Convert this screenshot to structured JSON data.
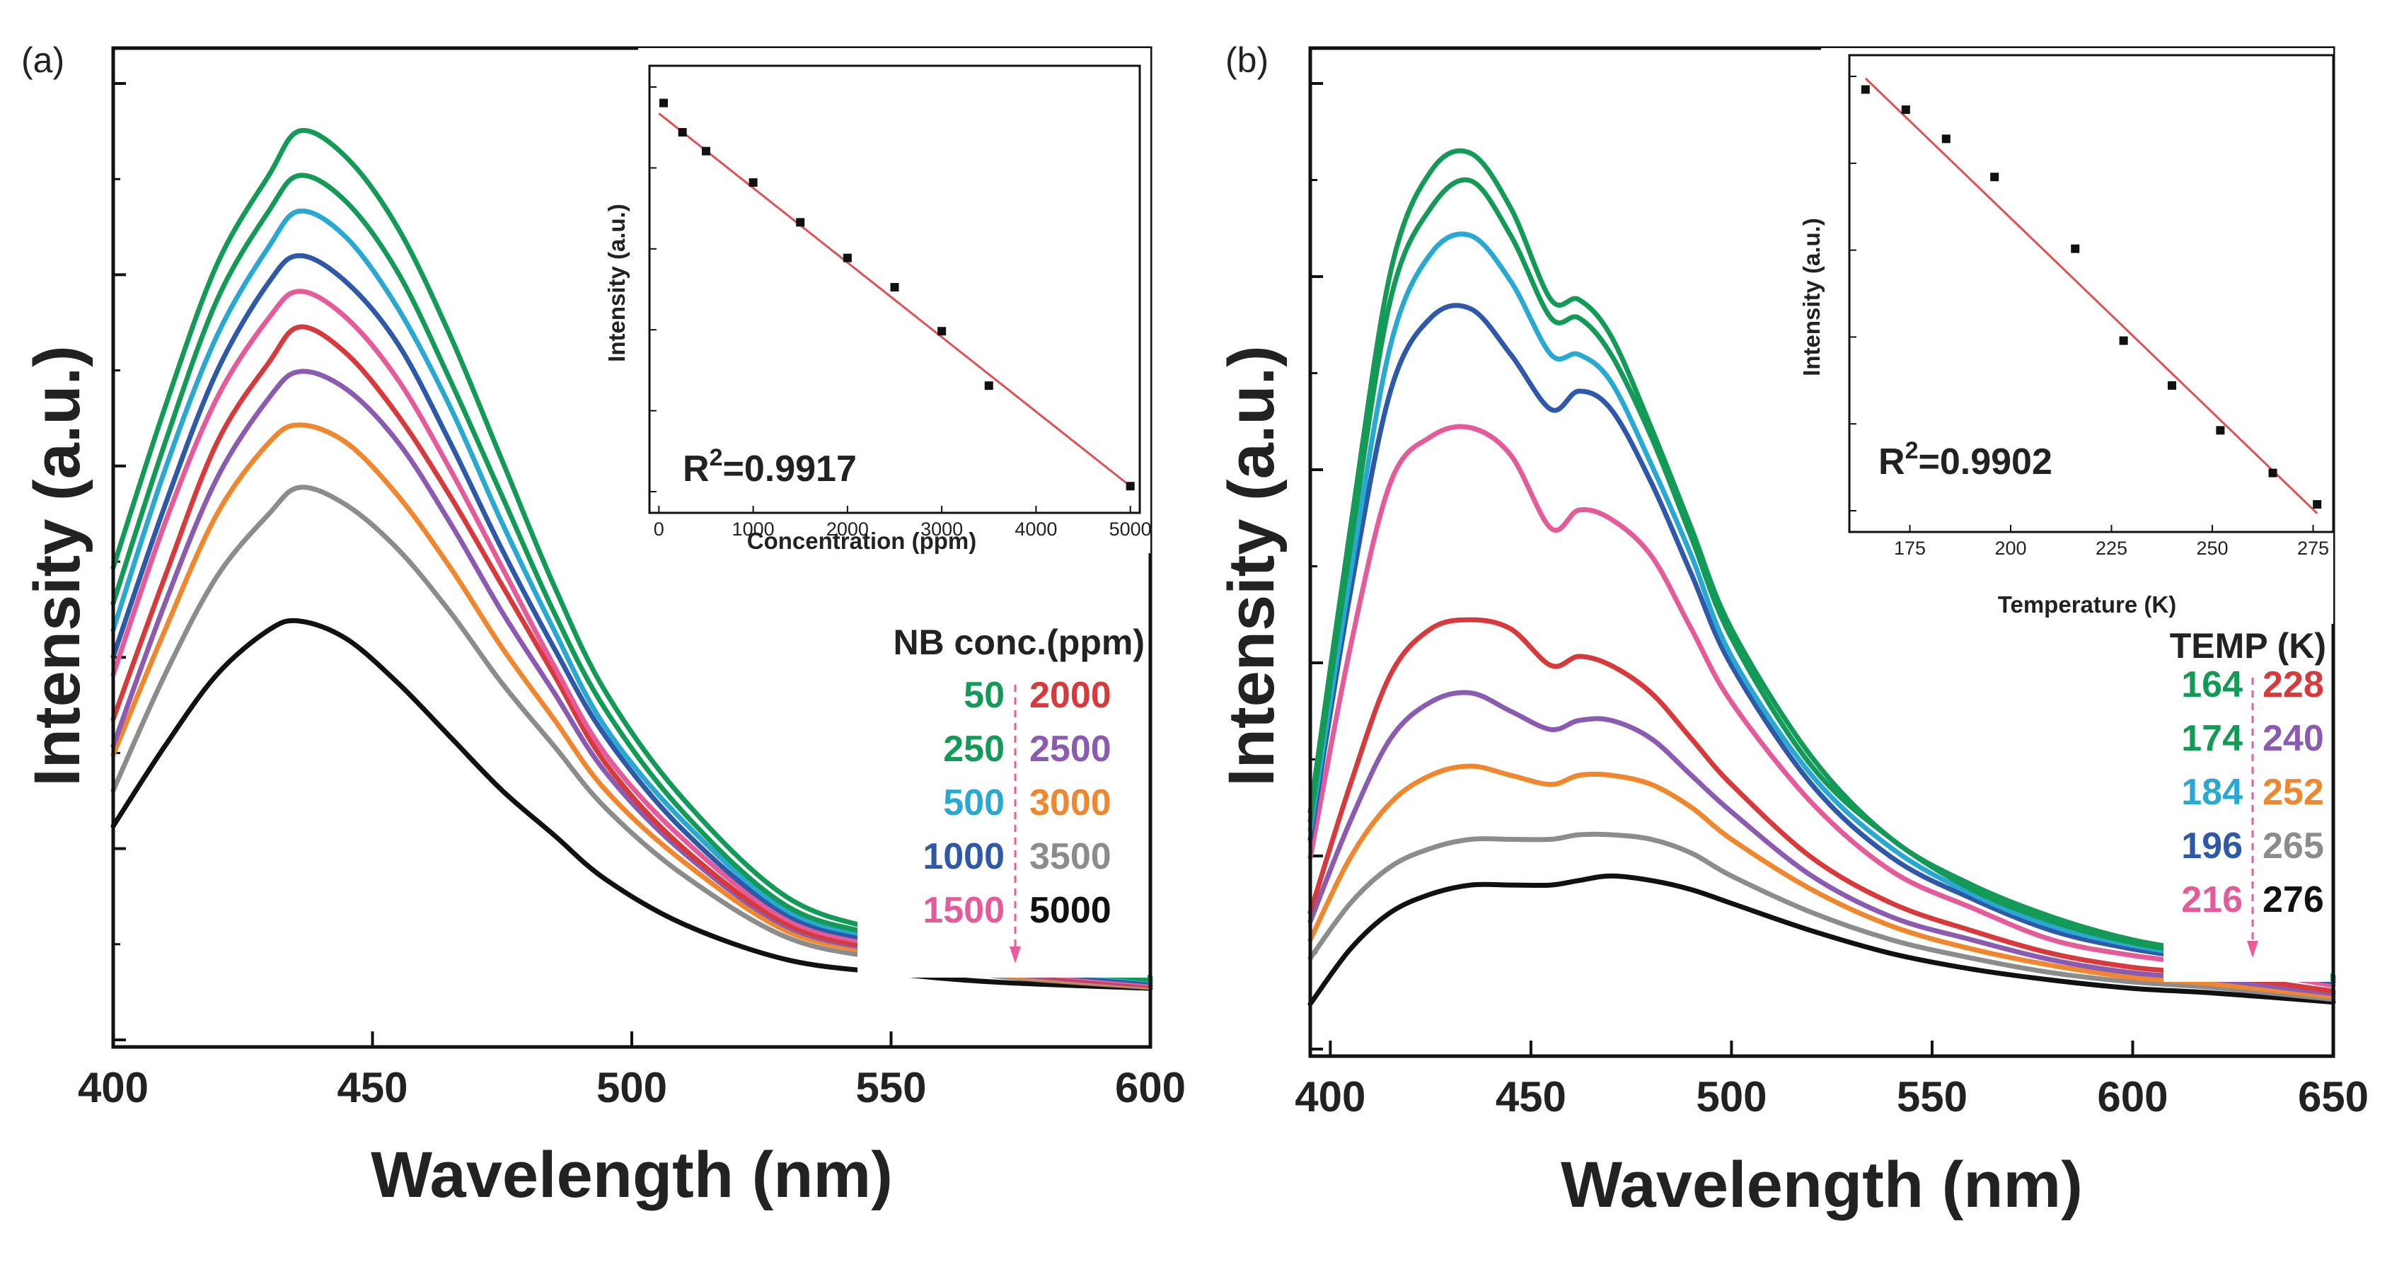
{
  "chart_data": [
    {
      "id": "a",
      "panel_label": "(a)",
      "type": "line",
      "xlabel": "Wavelength (nm)",
      "ylabel": "Intensity (a.u.)",
      "xlim": [
        400,
        600
      ],
      "ylim": [
        0,
        1
      ],
      "xticks": [
        400,
        450,
        500,
        550,
        600
      ],
      "x": [
        400,
        410,
        420,
        430,
        436,
        445,
        455,
        465,
        475,
        485,
        495,
        510,
        530,
        550,
        570,
        600
      ],
      "series": [
        {
          "name": "50",
          "color": "#139a56",
          "values": [
            0.51,
            0.69,
            0.85,
            0.95,
            1.0,
            0.97,
            0.89,
            0.77,
            0.63,
            0.49,
            0.37,
            0.25,
            0.14,
            0.1,
            0.07,
            0.05
          ]
        },
        {
          "name": "250",
          "color": "#139a56",
          "values": [
            0.47,
            0.65,
            0.81,
            0.91,
            0.95,
            0.92,
            0.84,
            0.72,
            0.59,
            0.46,
            0.35,
            0.235,
            0.13,
            0.095,
            0.067,
            0.048
          ]
        },
        {
          "name": "500",
          "color": "#29a9d2",
          "values": [
            0.44,
            0.62,
            0.77,
            0.87,
            0.91,
            0.88,
            0.8,
            0.69,
            0.56,
            0.44,
            0.33,
            0.225,
            0.125,
            0.092,
            0.065,
            0.047
          ]
        },
        {
          "name": "1000",
          "color": "#2e58a8",
          "values": [
            0.41,
            0.58,
            0.73,
            0.83,
            0.86,
            0.83,
            0.76,
            0.65,
            0.53,
            0.42,
            0.32,
            0.215,
            0.12,
            0.088,
            0.062,
            0.045
          ]
        },
        {
          "name": "1500",
          "color": "#e55b9a",
          "values": [
            0.39,
            0.56,
            0.7,
            0.79,
            0.82,
            0.79,
            0.72,
            0.62,
            0.51,
            0.4,
            0.3,
            0.205,
            0.115,
            0.084,
            0.06,
            0.043
          ]
        },
        {
          "name": "2000",
          "color": "#d8393b",
          "values": [
            0.34,
            0.5,
            0.65,
            0.74,
            0.78,
            0.75,
            0.68,
            0.59,
            0.49,
            0.39,
            0.29,
            0.195,
            0.11,
            0.08,
            0.058,
            0.042
          ]
        },
        {
          "name": "2500",
          "color": "#8a5bb0",
          "values": [
            0.31,
            0.47,
            0.61,
            0.7,
            0.73,
            0.71,
            0.65,
            0.56,
            0.46,
            0.37,
            0.28,
            0.19,
            0.107,
            0.078,
            0.056,
            0.041
          ]
        },
        {
          "name": "3000",
          "color": "#f0862e",
          "values": [
            0.3,
            0.44,
            0.57,
            0.65,
            0.67,
            0.65,
            0.59,
            0.51,
            0.42,
            0.34,
            0.26,
            0.18,
            0.102,
            0.075,
            0.054,
            0.04
          ]
        },
        {
          "name": "3500",
          "color": "#8c8c8c",
          "values": [
            0.26,
            0.39,
            0.5,
            0.57,
            0.6,
            0.58,
            0.53,
            0.46,
            0.38,
            0.31,
            0.24,
            0.165,
            0.095,
            0.07,
            0.052,
            0.039
          ]
        },
        {
          "name": "5000",
          "color": "#111111",
          "values": [
            0.22,
            0.31,
            0.39,
            0.44,
            0.45,
            0.43,
            0.38,
            0.32,
            0.26,
            0.21,
            0.16,
            0.11,
            0.07,
            0.055,
            0.045,
            0.038
          ]
        }
      ],
      "legend": {
        "title": "NB conc.(ppm)",
        "left": [
          {
            "label": "50",
            "color": "#139a56"
          },
          {
            "label": "250",
            "color": "#139a56"
          },
          {
            "label": "500",
            "color": "#29a9d2"
          },
          {
            "label": "1000",
            "color": "#2e58a8"
          },
          {
            "label": "1500",
            "color": "#e55b9a"
          }
        ],
        "right": [
          {
            "label": "2000",
            "color": "#d8393b"
          },
          {
            "label": "2500",
            "color": "#8a5bb0"
          },
          {
            "label": "3000",
            "color": "#f0862e"
          },
          {
            "label": "3500",
            "color": "#8c8c8c"
          },
          {
            "label": "5000",
            "color": "#111111"
          }
        ]
      },
      "inset": {
        "type": "scatter",
        "xlabel": "Concentration (ppm)",
        "ylabel": "Intensity (a.u.)",
        "annotation": {
          "text": "R",
          "sup": "2",
          "rest": "=0.9917"
        },
        "xlim": [
          -100,
          5100
        ],
        "ylim": [
          0,
          1
        ],
        "xticks": [
          0,
          1000,
          2000,
          3000,
          4000,
          5000
        ],
        "x": [
          50,
          250,
          500,
          1000,
          1500,
          2000,
          2500,
          3000,
          3500,
          5000
        ],
        "y": [
          0.945,
          0.875,
          0.83,
          0.755,
          0.66,
          0.575,
          0.505,
          0.4,
          0.27,
          0.03
        ],
        "fit": {
          "x0": 0,
          "y0": 0.92,
          "x1": 5000,
          "y1": 0.03,
          "color": "#e05050"
        }
      }
    },
    {
      "id": "b",
      "panel_label": "(b)",
      "type": "line",
      "xlabel": "Wavelength (nm)",
      "ylabel": "Intensity (a.u.)",
      "xlim": [
        395,
        650
      ],
      "ylim": [
        0,
        1
      ],
      "xticks": [
        400,
        450,
        500,
        550,
        600,
        650
      ],
      "x": [
        395,
        405,
        415,
        425,
        435,
        445,
        455,
        462,
        470,
        480,
        490,
        500,
        520,
        540,
        560,
        580,
        600,
        620,
        650
      ],
      "series": [
        {
          "name": "164",
          "color": "#139a56",
          "values": [
            0.24,
            0.55,
            0.83,
            0.94,
            0.96,
            0.9,
            0.8,
            0.8,
            0.76,
            0.66,
            0.55,
            0.44,
            0.3,
            0.21,
            0.16,
            0.125,
            0.1,
            0.085,
            0.06
          ]
        },
        {
          "name": "174",
          "color": "#139a56",
          "values": [
            0.23,
            0.53,
            0.8,
            0.9,
            0.93,
            0.87,
            0.78,
            0.78,
            0.74,
            0.65,
            0.54,
            0.43,
            0.29,
            0.21,
            0.155,
            0.12,
            0.097,
            0.082,
            0.058
          ]
        },
        {
          "name": "184",
          "color": "#29a9d2",
          "values": [
            0.22,
            0.5,
            0.75,
            0.85,
            0.87,
            0.82,
            0.74,
            0.74,
            0.71,
            0.62,
            0.52,
            0.41,
            0.28,
            0.2,
            0.15,
            0.115,
            0.094,
            0.08,
            0.056
          ]
        },
        {
          "name": "196",
          "color": "#2e58a8",
          "values": [
            0.21,
            0.48,
            0.7,
            0.78,
            0.79,
            0.74,
            0.68,
            0.7,
            0.68,
            0.6,
            0.5,
            0.4,
            0.27,
            0.19,
            0.145,
            0.11,
            0.09,
            0.077,
            0.054
          ]
        },
        {
          "name": "216",
          "color": "#e55b9a",
          "values": [
            0.19,
            0.42,
            0.6,
            0.65,
            0.66,
            0.63,
            0.55,
            0.57,
            0.56,
            0.52,
            0.44,
            0.36,
            0.25,
            0.175,
            0.135,
            0.1,
            0.083,
            0.072,
            0.05
          ]
        },
        {
          "name": "228",
          "color": "#d8393b",
          "values": [
            0.13,
            0.27,
            0.39,
            0.44,
            0.45,
            0.44,
            0.4,
            0.41,
            0.4,
            0.37,
            0.32,
            0.27,
            0.19,
            0.14,
            0.11,
            0.085,
            0.07,
            0.062,
            0.044
          ]
        },
        {
          "name": "240",
          "color": "#8a5bb0",
          "values": [
            0.12,
            0.23,
            0.32,
            0.36,
            0.37,
            0.35,
            0.33,
            0.34,
            0.34,
            0.32,
            0.28,
            0.24,
            0.17,
            0.125,
            0.1,
            0.078,
            0.064,
            0.057,
            0.041
          ]
        },
        {
          "name": "252",
          "color": "#f0862e",
          "values": [
            0.1,
            0.19,
            0.25,
            0.28,
            0.29,
            0.28,
            0.27,
            0.28,
            0.28,
            0.27,
            0.245,
            0.21,
            0.155,
            0.115,
            0.09,
            0.072,
            0.059,
            0.052,
            0.038
          ]
        },
        {
          "name": "265",
          "color": "#8c8c8c",
          "values": [
            0.08,
            0.14,
            0.18,
            0.2,
            0.21,
            0.21,
            0.21,
            0.215,
            0.215,
            0.21,
            0.195,
            0.17,
            0.13,
            0.1,
            0.08,
            0.064,
            0.054,
            0.048,
            0.035
          ]
        },
        {
          "name": "276",
          "color": "#111111",
          "values": [
            0.03,
            0.09,
            0.13,
            0.15,
            0.16,
            0.16,
            0.16,
            0.165,
            0.17,
            0.165,
            0.155,
            0.14,
            0.11,
            0.085,
            0.068,
            0.056,
            0.047,
            0.042,
            0.032
          ]
        }
      ],
      "legend": {
        "title": "TEMP (K)",
        "left": [
          {
            "label": "164",
            "color": "#139a56"
          },
          {
            "label": "174",
            "color": "#139a56"
          },
          {
            "label": "184",
            "color": "#29a9d2"
          },
          {
            "label": "196",
            "color": "#2e58a8"
          },
          {
            "label": "216",
            "color": "#e55b9a"
          }
        ],
        "right": [
          {
            "label": "228",
            "color": "#d8393b"
          },
          {
            "label": "240",
            "color": "#8a5bb0"
          },
          {
            "label": "252",
            "color": "#f0862e"
          },
          {
            "label": "265",
            "color": "#8c8c8c"
          },
          {
            "label": "276",
            "color": "#111111"
          }
        ]
      },
      "inset": {
        "type": "scatter",
        "xlabel": "Temperature (K)",
        "ylabel": "Intensity (a.u.)",
        "annotation": {
          "text": "R",
          "sup": "2",
          "rest": "=0.9902"
        },
        "xlim": [
          160,
          280
        ],
        "ylim": [
          0,
          1
        ],
        "xticks": [
          175,
          200,
          225,
          250,
          275
        ],
        "x": [
          164,
          174,
          184,
          196,
          216,
          228,
          240,
          252,
          265,
          276
        ],
        "y": [
          0.955,
          0.91,
          0.845,
          0.76,
          0.6,
          0.395,
          0.295,
          0.195,
          0.1,
          0.03
        ],
        "fit": {
          "x0": 164,
          "y0": 0.98,
          "x1": 276,
          "y1": 0.01,
          "color": "#e05050"
        }
      }
    }
  ]
}
